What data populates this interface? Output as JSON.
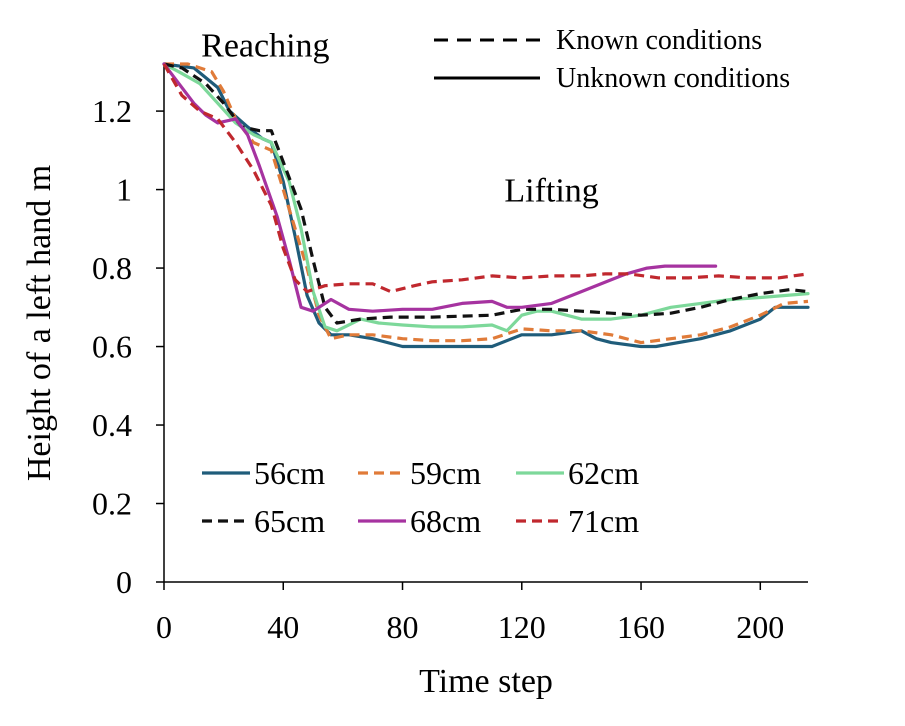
{
  "chart_data": {
    "type": "line",
    "xlabel": "Time step",
    "ylabel": "Height of a left hand  m",
    "xlim": [
      0,
      216
    ],
    "ylim": [
      0,
      1.32
    ],
    "xticks": [
      0,
      40,
      80,
      120,
      160,
      200
    ],
    "yticks": [
      0,
      0.2,
      0.4,
      0.6,
      0.8,
      1,
      1.2
    ],
    "grid": false,
    "annotations": [
      {
        "text": "Reaching",
        "x": 34,
        "y": 1.37
      },
      {
        "text": "Lifting",
        "x": 130,
        "y": 1.0
      }
    ],
    "style_legend": [
      {
        "label": "Known conditions",
        "dash": "dashed"
      },
      {
        "label": "Unknown conditions",
        "dash": "solid"
      }
    ],
    "legend_position": "bottom-left",
    "series": [
      {
        "name": "56cm",
        "color": "#1f5c7a",
        "dash": "solid",
        "points": [
          [
            0,
            1.32
          ],
          [
            10,
            1.31
          ],
          [
            18,
            1.26
          ],
          [
            22,
            1.2
          ],
          [
            28,
            1.16
          ],
          [
            33,
            1.13
          ],
          [
            36,
            1.12
          ],
          [
            40,
            1.02
          ],
          [
            44,
            0.88
          ],
          [
            48,
            0.73
          ],
          [
            52,
            0.66
          ],
          [
            56,
            0.63
          ],
          [
            62,
            0.63
          ],
          [
            70,
            0.62
          ],
          [
            80,
            0.6
          ],
          [
            90,
            0.6
          ],
          [
            100,
            0.6
          ],
          [
            110,
            0.6
          ],
          [
            120,
            0.63
          ],
          [
            130,
            0.63
          ],
          [
            140,
            0.64
          ],
          [
            145,
            0.62
          ],
          [
            150,
            0.61
          ],
          [
            160,
            0.6
          ],
          [
            165,
            0.6
          ],
          [
            180,
            0.62
          ],
          [
            190,
            0.64
          ],
          [
            200,
            0.67
          ],
          [
            205,
            0.7
          ],
          [
            216,
            0.7
          ]
        ]
      },
      {
        "name": "59cm",
        "color": "#e07b39",
        "dash": "dashed",
        "points": [
          [
            0,
            1.32
          ],
          [
            8,
            1.32
          ],
          [
            16,
            1.3
          ],
          [
            20,
            1.25
          ],
          [
            24,
            1.18
          ],
          [
            30,
            1.12
          ],
          [
            36,
            1.1
          ],
          [
            42,
            0.95
          ],
          [
            48,
            0.8
          ],
          [
            52,
            0.68
          ],
          [
            56,
            0.62
          ],
          [
            62,
            0.63
          ],
          [
            70,
            0.63
          ],
          [
            80,
            0.62
          ],
          [
            90,
            0.615
          ],
          [
            100,
            0.615
          ],
          [
            110,
            0.62
          ],
          [
            120,
            0.645
          ],
          [
            130,
            0.64
          ],
          [
            140,
            0.64
          ],
          [
            150,
            0.63
          ],
          [
            160,
            0.61
          ],
          [
            170,
            0.62
          ],
          [
            180,
            0.63
          ],
          [
            190,
            0.65
          ],
          [
            200,
            0.68
          ],
          [
            208,
            0.71
          ],
          [
            216,
            0.715
          ]
        ]
      },
      {
        "name": "62cm",
        "color": "#7dd89a",
        "dash": "solid",
        "points": [
          [
            0,
            1.32
          ],
          [
            5,
            1.3
          ],
          [
            12,
            1.27
          ],
          [
            18,
            1.22
          ],
          [
            24,
            1.17
          ],
          [
            30,
            1.14
          ],
          [
            36,
            1.12
          ],
          [
            42,
            1.02
          ],
          [
            46,
            0.9
          ],
          [
            50,
            0.74
          ],
          [
            54,
            0.65
          ],
          [
            58,
            0.64
          ],
          [
            66,
            0.67
          ],
          [
            72,
            0.66
          ],
          [
            80,
            0.655
          ],
          [
            90,
            0.65
          ],
          [
            100,
            0.65
          ],
          [
            110,
            0.655
          ],
          [
            115,
            0.64
          ],
          [
            120,
            0.68
          ],
          [
            125,
            0.69
          ],
          [
            130,
            0.69
          ],
          [
            140,
            0.67
          ],
          [
            150,
            0.67
          ],
          [
            160,
            0.68
          ],
          [
            170,
            0.7
          ],
          [
            180,
            0.71
          ],
          [
            190,
            0.72
          ],
          [
            200,
            0.725
          ],
          [
            216,
            0.735
          ]
        ]
      },
      {
        "name": "65cm",
        "color": "#111111",
        "dash": "dashed",
        "points": [
          [
            0,
            1.32
          ],
          [
            6,
            1.31
          ],
          [
            14,
            1.27
          ],
          [
            20,
            1.22
          ],
          [
            26,
            1.16
          ],
          [
            32,
            1.15
          ],
          [
            36,
            1.15
          ],
          [
            40,
            1.07
          ],
          [
            46,
            0.95
          ],
          [
            50,
            0.82
          ],
          [
            54,
            0.7
          ],
          [
            58,
            0.66
          ],
          [
            66,
            0.67
          ],
          [
            76,
            0.675
          ],
          [
            90,
            0.675
          ],
          [
            110,
            0.68
          ],
          [
            120,
            0.695
          ],
          [
            130,
            0.695
          ],
          [
            140,
            0.69
          ],
          [
            150,
            0.685
          ],
          [
            160,
            0.68
          ],
          [
            170,
            0.685
          ],
          [
            180,
            0.7
          ],
          [
            190,
            0.72
          ],
          [
            200,
            0.735
          ],
          [
            210,
            0.745
          ],
          [
            216,
            0.74
          ]
        ]
      },
      {
        "name": "68cm",
        "color": "#a633a0",
        "dash": "solid",
        "points": [
          [
            0,
            1.32
          ],
          [
            4,
            1.28
          ],
          [
            10,
            1.22
          ],
          [
            14,
            1.19
          ],
          [
            18,
            1.17
          ],
          [
            24,
            1.18
          ],
          [
            28,
            1.14
          ],
          [
            32,
            1.06
          ],
          [
            38,
            0.93
          ],
          [
            42,
            0.82
          ],
          [
            46,
            0.7
          ],
          [
            50,
            0.69
          ],
          [
            56,
            0.72
          ],
          [
            62,
            0.695
          ],
          [
            70,
            0.69
          ],
          [
            80,
            0.695
          ],
          [
            90,
            0.695
          ],
          [
            100,
            0.71
          ],
          [
            110,
            0.715
          ],
          [
            115,
            0.7
          ],
          [
            120,
            0.7
          ],
          [
            130,
            0.71
          ],
          [
            140,
            0.74
          ],
          [
            150,
            0.77
          ],
          [
            155,
            0.785
          ],
          [
            162,
            0.8
          ],
          [
            168,
            0.805
          ],
          [
            175,
            0.805
          ],
          [
            185,
            0.805
          ]
        ]
      },
      {
        "name": "71cm",
        "color": "#c0282e",
        "dash": "dashed",
        "points": [
          [
            0,
            1.32
          ],
          [
            6,
            1.24
          ],
          [
            12,
            1.2
          ],
          [
            18,
            1.18
          ],
          [
            24,
            1.12
          ],
          [
            30,
            1.05
          ],
          [
            36,
            0.96
          ],
          [
            40,
            0.85
          ],
          [
            44,
            0.77
          ],
          [
            48,
            0.74
          ],
          [
            54,
            0.755
          ],
          [
            62,
            0.76
          ],
          [
            70,
            0.76
          ],
          [
            76,
            0.74
          ],
          [
            84,
            0.755
          ],
          [
            90,
            0.765
          ],
          [
            100,
            0.77
          ],
          [
            110,
            0.78
          ],
          [
            120,
            0.775
          ],
          [
            130,
            0.78
          ],
          [
            140,
            0.78
          ],
          [
            148,
            0.785
          ],
          [
            156,
            0.785
          ],
          [
            166,
            0.775
          ],
          [
            176,
            0.775
          ],
          [
            186,
            0.78
          ],
          [
            196,
            0.775
          ],
          [
            206,
            0.775
          ],
          [
            216,
            0.785
          ]
        ]
      }
    ]
  }
}
